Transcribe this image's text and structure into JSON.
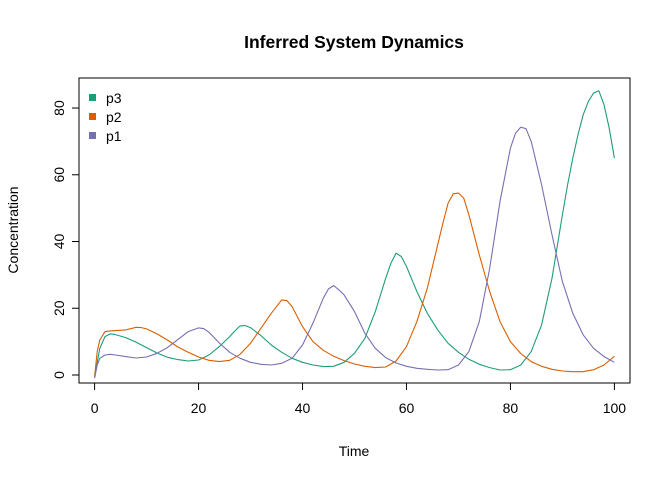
{
  "chart_data": {
    "type": "line",
    "title": "Inferred System Dynamics",
    "xlabel": "Time",
    "ylabel": "Concentration",
    "xlim": [
      -3,
      103
    ],
    "ylim": [
      -2.4,
      89
    ],
    "xticks": [
      0,
      20,
      40,
      60,
      80,
      100
    ],
    "yticks": [
      0,
      20,
      40,
      60,
      80
    ],
    "grid": false,
    "legend_position": "top-left",
    "series": [
      {
        "name": "p3",
        "color": "#1b9e77",
        "x": [
          0,
          1,
          2,
          3,
          4,
          6,
          8,
          10,
          12,
          14,
          16,
          18,
          20,
          22,
          24,
          26,
          27,
          28,
          29,
          30,
          32,
          34,
          36,
          38,
          40,
          42,
          44,
          46,
          48,
          50,
          52,
          54,
          56,
          57,
          58,
          59,
          60,
          62,
          64,
          66,
          68,
          70,
          72,
          74,
          76,
          78,
          80,
          82,
          84,
          86,
          88,
          90,
          91,
          92,
          93,
          94,
          95,
          96,
          97,
          98,
          99,
          100
        ],
        "y": [
          -0.5,
          8,
          11.5,
          12.3,
          12.1,
          11.2,
          9.8,
          8.2,
          6.6,
          5.3,
          4.6,
          4.2,
          4.5,
          6,
          8.5,
          11.5,
          13.2,
          14.7,
          14.8,
          14.2,
          11.8,
          9,
          6.8,
          5,
          3.8,
          3,
          2.5,
          2.6,
          3.8,
          6.5,
          11,
          19,
          29,
          33.5,
          36.5,
          35.5,
          32.5,
          25,
          18.5,
          13.5,
          9.5,
          6.8,
          4.7,
          3.2,
          2.2,
          1.5,
          1.6,
          3,
          7,
          15,
          29,
          48,
          57,
          65,
          72,
          78,
          82,
          84.5,
          85.2,
          81,
          74,
          65
        ]
      },
      {
        "name": "p2",
        "color": "#d95f02",
        "x": [
          0,
          0.5,
          1,
          2,
          3,
          4,
          6,
          8,
          9,
          10,
          12,
          14,
          16,
          18,
          20,
          22,
          24,
          26,
          28,
          30,
          32,
          34,
          36,
          37,
          38,
          40,
          42,
          44,
          46,
          48,
          50,
          52,
          54,
          56,
          58,
          60,
          62,
          64,
          66,
          67,
          68,
          69,
          70,
          71,
          72,
          74,
          76,
          78,
          80,
          82,
          84,
          86,
          88,
          90,
          92,
          94,
          96,
          98,
          100
        ],
        "y": [
          -0.5,
          7,
          10.5,
          13,
          13.2,
          13.3,
          13.5,
          14.3,
          14.2,
          13.8,
          12.3,
          10.5,
          8.4,
          6.8,
          5.4,
          4.4,
          4,
          4.4,
          6.2,
          9.5,
          14,
          18.5,
          22.5,
          22.3,
          20.5,
          14.5,
          10,
          7.4,
          5.6,
          4.3,
          3.3,
          2.6,
          2.2,
          2.4,
          4.2,
          8.5,
          16,
          26,
          39,
          45.5,
          51.5,
          54.3,
          54.5,
          53,
          48,
          36,
          25,
          16,
          10,
          6.4,
          4,
          2.6,
          1.7,
          1.2,
          1,
          1,
          1.6,
          3,
          5.6
        ]
      },
      {
        "name": "p1",
        "color": "#7570b3",
        "x": [
          0,
          0.5,
          1,
          2,
          3,
          4,
          6,
          8,
          10,
          12,
          14,
          16,
          18,
          20,
          21,
          22,
          24,
          26,
          28,
          30,
          32,
          34,
          36,
          38,
          40,
          42,
          44,
          45,
          46,
          47,
          48,
          50,
          52,
          54,
          56,
          58,
          60,
          62,
          64,
          66,
          68,
          70,
          72,
          74,
          76,
          78,
          80,
          81,
          82,
          83,
          84,
          86,
          88,
          90,
          92,
          94,
          96,
          98,
          100
        ],
        "y": [
          -1,
          3,
          5,
          6,
          6.2,
          6,
          5.5,
          5.1,
          5.4,
          6.5,
          8.2,
          10.6,
          13,
          14.1,
          13.9,
          12.8,
          9.6,
          6.8,
          5,
          3.8,
          3.2,
          3,
          3.5,
          5,
          9,
          15.5,
          23,
          25.8,
          26.8,
          25.5,
          24,
          19,
          12.5,
          8,
          5.2,
          3.6,
          2.6,
          2,
          1.7,
          1.5,
          1.6,
          3,
          7,
          16,
          32,
          52,
          68,
          72.5,
          74.3,
          73.8,
          70,
          57,
          42,
          28,
          18.5,
          12,
          8,
          5.5,
          3.8
        ]
      }
    ]
  }
}
